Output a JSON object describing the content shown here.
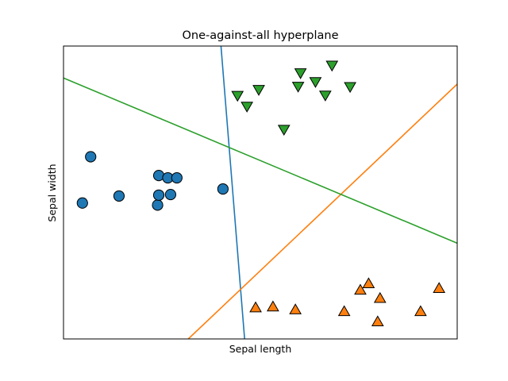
{
  "chart_data": {
    "type": "scatter",
    "title": "One-against-all hyperplane",
    "xlabel": "Sepal length",
    "ylabel": "Sepal width",
    "xlim": [
      0,
      10
    ],
    "ylim": [
      0,
      10
    ],
    "ticks_visible": false,
    "grid": false,
    "legend": "none",
    "series": [
      {
        "marker": "circle",
        "color": "#1f77b4",
        "points": [
          [
            0.48,
            4.64
          ],
          [
            0.69,
            6.22
          ],
          [
            1.41,
            4.88
          ],
          [
            2.39,
            4.57
          ],
          [
            2.42,
            4.91
          ],
          [
            2.42,
            5.58
          ],
          [
            2.65,
            5.5
          ],
          [
            2.72,
            4.93
          ],
          [
            2.88,
            5.5
          ],
          [
            4.05,
            5.12
          ]
        ]
      },
      {
        "marker": "triangle-up",
        "color": "#ff7f0e",
        "points": [
          [
            4.88,
            1.05
          ],
          [
            5.32,
            1.08
          ],
          [
            5.89,
            0.98
          ],
          [
            7.13,
            0.92
          ],
          [
            7.54,
            1.65
          ],
          [
            7.75,
            1.87
          ],
          [
            7.98,
            0.57
          ],
          [
            8.04,
            1.37
          ],
          [
            9.07,
            0.92
          ],
          [
            9.54,
            1.71
          ]
        ]
      },
      {
        "marker": "triangle-down",
        "color": "#2ca02c",
        "points": [
          [
            4.42,
            8.33
          ],
          [
            4.66,
            7.96
          ],
          [
            4.96,
            8.53
          ],
          [
            5.6,
            7.17
          ],
          [
            5.96,
            8.64
          ],
          [
            6.02,
            9.1
          ],
          [
            6.4,
            8.8
          ],
          [
            6.65,
            8.34
          ],
          [
            6.82,
            9.36
          ],
          [
            7.28,
            8.63
          ]
        ]
      }
    ],
    "lines": [
      {
        "color": "#1f77b4",
        "x": [
          4.0,
          4.6
        ],
        "y": [
          10.0,
          0.0
        ]
      },
      {
        "color": "#ff7f0e",
        "x": [
          3.17,
          10.0
        ],
        "y": [
          0.0,
          8.7
        ]
      },
      {
        "color": "#2ca02c",
        "x": [
          0.0,
          10.0
        ],
        "y": [
          8.91,
          3.27
        ]
      }
    ]
  }
}
